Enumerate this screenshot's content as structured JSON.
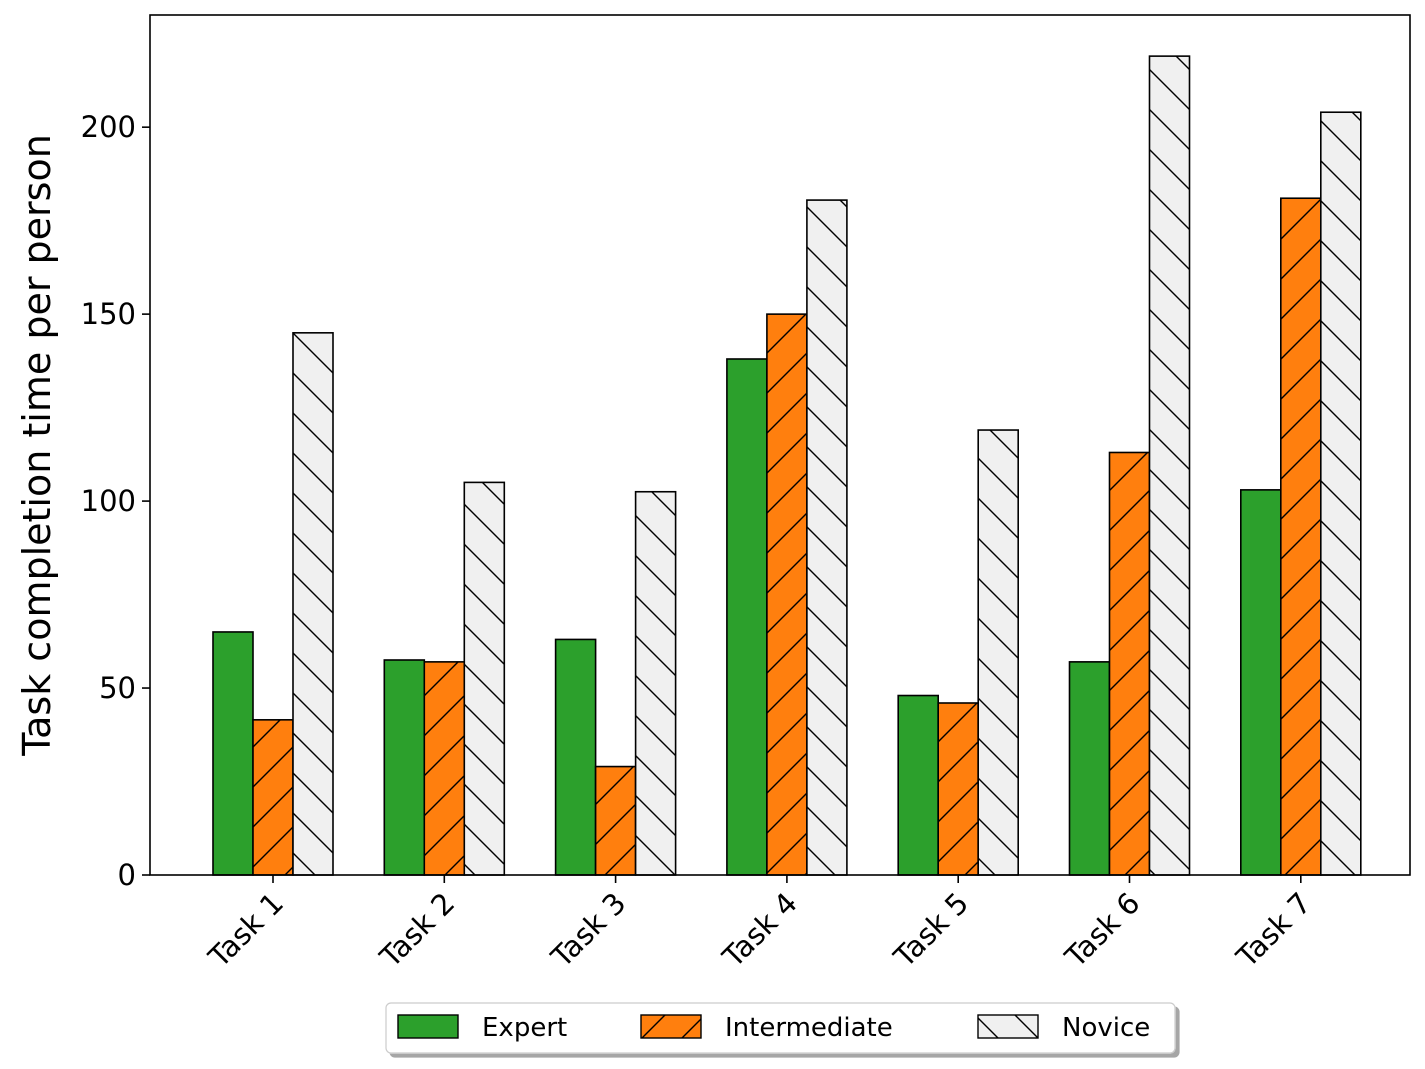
{
  "chart_data": {
    "type": "bar",
    "title": "",
    "xlabel": "",
    "ylabel": "Task completion time per person",
    "categories": [
      "Task 1",
      "Task 2",
      "Task 3",
      "Task 4",
      "Task 5",
      "Task 6",
      "Task 7"
    ],
    "series": [
      {
        "name": "Expert",
        "color": "#2ca02c",
        "hatch": "none",
        "values": [
          65,
          57.5,
          63,
          138,
          48,
          57,
          103
        ]
      },
      {
        "name": "Intermediate",
        "color": "#ff7f0e",
        "hatch": "slash",
        "values": [
          41.5,
          57,
          29,
          150,
          46,
          113,
          181
        ]
      },
      {
        "name": "Novice",
        "color": "#f0f0f0",
        "hatch": "backslash",
        "values": [
          145,
          105,
          102.5,
          180.5,
          119,
          219,
          204
        ]
      }
    ],
    "ylim": [
      0,
      230
    ],
    "yticks": [
      0,
      50,
      100,
      150,
      200
    ],
    "grid": false,
    "legend_position": "bottom-center"
  }
}
